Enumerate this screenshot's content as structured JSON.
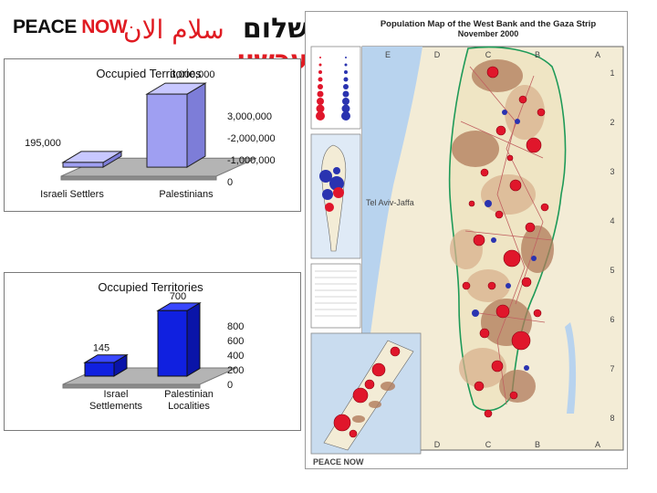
{
  "logo": {
    "english_peace": "PEACE",
    "english_now": "NOW",
    "arabic": "سلام الان",
    "hebrew_red": "עכשיו",
    "hebrew_black": "שלום"
  },
  "chart_data": [
    {
      "type": "bar",
      "title": "Occupied Territories",
      "categories": [
        "Israeli Settlers",
        "Palestinians"
      ],
      "values": [
        195000,
        3000000
      ],
      "value_labels": [
        "195,000",
        "3,000,000"
      ],
      "axis_ticks": [
        "3,000,000",
        "-2,000,000",
        "-1,000,000",
        "0"
      ],
      "ylim": [
        0,
        3000000
      ],
      "colors": {
        "front": "#9f9ff2",
        "side": "#7d7dd8",
        "top": "#c8c8ff",
        "outline": "#222222"
      }
    },
    {
      "type": "bar",
      "title": "Occupied Territories",
      "categories": [
        "Israel Settlements",
        "Palestinian Localities"
      ],
      "category_lines": [
        [
          "Israel",
          "Settlements"
        ],
        [
          "Palestinian",
          "Localities"
        ]
      ],
      "values": [
        145,
        700
      ],
      "value_labels": [
        "145",
        "700"
      ],
      "axis_ticks": [
        "800",
        "600",
        "400",
        "200",
        "0"
      ],
      "ylim": [
        0,
        800
      ],
      "colors": {
        "front": "#1020e0",
        "side": "#0a14a8",
        "top": "#3a48ff",
        "outline": "#111111"
      }
    }
  ],
  "map": {
    "title": "Population Map of the West Bank and the Gaza Strip",
    "subtitle": "November 2000",
    "columns_top": [
      "E",
      "D",
      "C",
      "B",
      "A"
    ],
    "columns_bottom": [
      "D",
      "C",
      "B",
      "A"
    ],
    "rows": [
      "1",
      "2",
      "3",
      "4",
      "5",
      "6",
      "7",
      "8"
    ],
    "city_label": "Tel Aviv-Jaffa",
    "footer_brand": "PEACE NOW",
    "colors": {
      "land": "#f3ecd6",
      "sea": "#b8d3ee",
      "settlement": "#b07a5a",
      "palestinian": "#d8b08e",
      "red_dot": "#e0162b",
      "blue_dot": "#2a33b0",
      "border": "#1e9a58"
    }
  }
}
